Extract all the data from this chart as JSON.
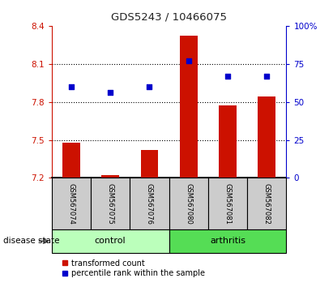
{
  "title": "GDS5243 / 10466075",
  "samples": [
    "GSM567074",
    "GSM567075",
    "GSM567076",
    "GSM567080",
    "GSM567081",
    "GSM567082"
  ],
  "bar_values": [
    7.48,
    7.225,
    7.42,
    8.32,
    7.77,
    7.84
  ],
  "dot_values": [
    60,
    56,
    60,
    77,
    67,
    67
  ],
  "bar_base": 7.2,
  "ylim_left": [
    7.2,
    8.4
  ],
  "ylim_right": [
    0,
    100
  ],
  "yticks_left": [
    7.2,
    7.5,
    7.8,
    8.1,
    8.4
  ],
  "ytick_labels_left": [
    "7.2",
    "7.5",
    "7.8",
    "8.1",
    "8.4"
  ],
  "yticks_right": [
    0,
    25,
    50,
    75,
    100
  ],
  "ytick_labels_right": [
    "0",
    "25",
    "50",
    "75",
    "100%"
  ],
  "hline_values": [
    7.5,
    7.8,
    8.1
  ],
  "bar_color": "#cc1100",
  "dot_color": "#0000cc",
  "control_color": "#bbffbb",
  "arthritis_color": "#55dd55",
  "label_bg_color": "#cccccc",
  "legend_bar_label": "transformed count",
  "legend_dot_label": "percentile rank within the sample",
  "disease_state_label": "disease state",
  "bar_width": 0.45,
  "control_indices": [
    0,
    1,
    2
  ],
  "arthritis_indices": [
    3,
    4,
    5
  ]
}
